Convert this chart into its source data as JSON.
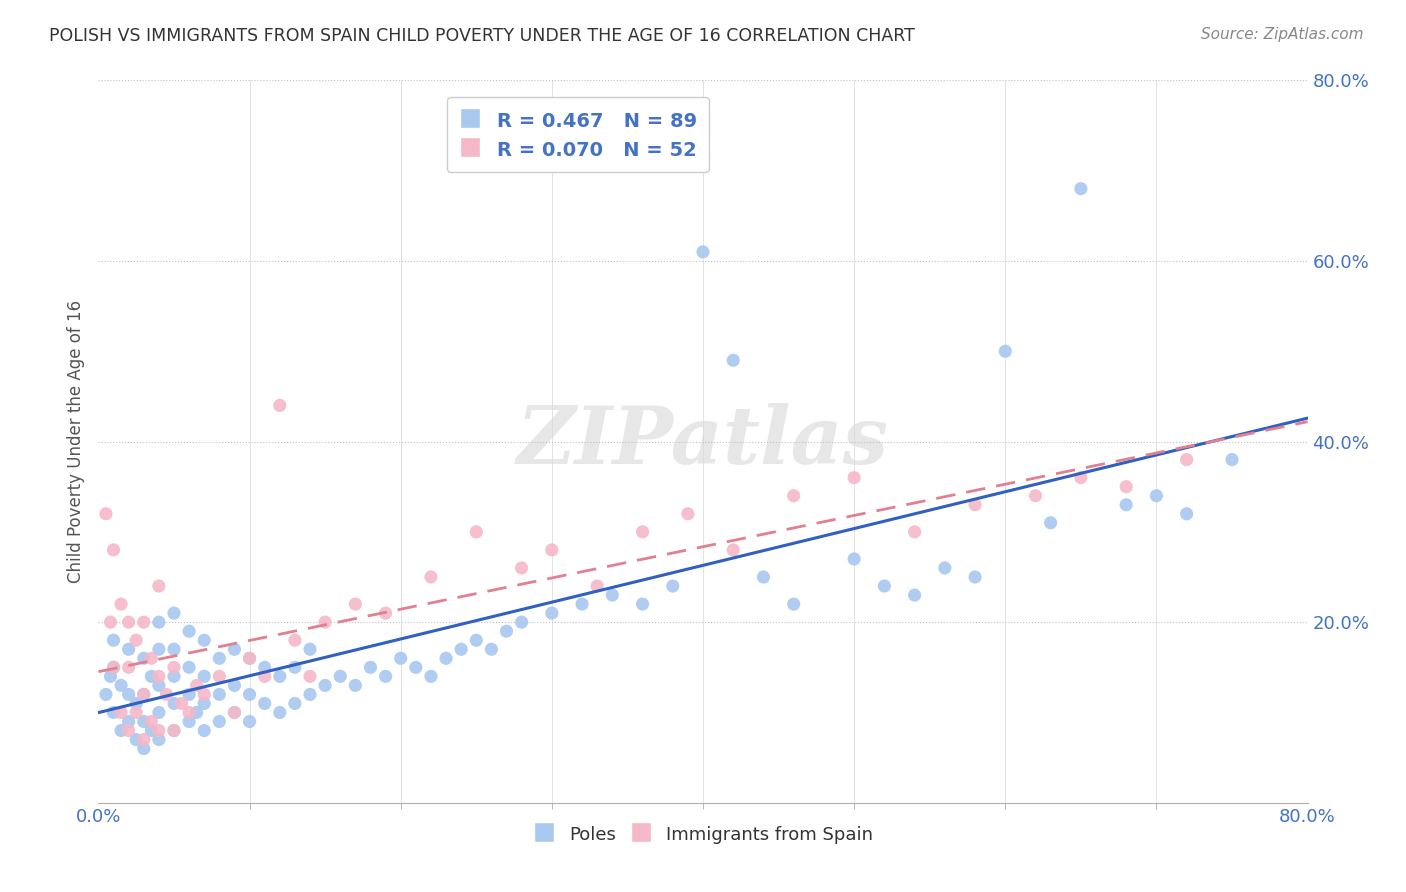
{
  "title": "POLISH VS IMMIGRANTS FROM SPAIN CHILD POVERTY UNDER THE AGE OF 16 CORRELATION CHART",
  "source": "Source: ZipAtlas.com",
  "ylabel": "Child Poverty Under the Age of 16",
  "poles_R": "0.467",
  "poles_N": "89",
  "spain_R": "0.070",
  "spain_N": "52",
  "poles_color": "#a8c8f0",
  "spain_color": "#f4b8c8",
  "poles_line_color": "#3060c0",
  "spain_line_color": "#e08090",
  "watermark_text": "ZIPatlas",
  "xlim": [
    0.0,
    0.8
  ],
  "ylim": [
    0.0,
    0.8
  ],
  "legend_label_poles": "Poles",
  "legend_label_spain": "Immigrants from Spain",
  "xtick_label_left": "0.0%",
  "xtick_label_right": "80.0%",
  "ytick_labels": [
    "20.0%",
    "40.0%",
    "60.0%",
    "80.0%"
  ],
  "ytick_vals": [
    0.2,
    0.4,
    0.6,
    0.8
  ],
  "poles_scatter_x": [
    0.005,
    0.008,
    0.01,
    0.01,
    0.01,
    0.015,
    0.015,
    0.02,
    0.02,
    0.02,
    0.025,
    0.025,
    0.03,
    0.03,
    0.03,
    0.03,
    0.035,
    0.035,
    0.04,
    0.04,
    0.04,
    0.04,
    0.04,
    0.05,
    0.05,
    0.05,
    0.05,
    0.05,
    0.06,
    0.06,
    0.06,
    0.06,
    0.065,
    0.07,
    0.07,
    0.07,
    0.07,
    0.08,
    0.08,
    0.08,
    0.09,
    0.09,
    0.09,
    0.1,
    0.1,
    0.1,
    0.11,
    0.11,
    0.12,
    0.12,
    0.13,
    0.13,
    0.14,
    0.14,
    0.15,
    0.16,
    0.17,
    0.18,
    0.19,
    0.2,
    0.21,
    0.22,
    0.23,
    0.24,
    0.25,
    0.26,
    0.27,
    0.28,
    0.3,
    0.32,
    0.34,
    0.36,
    0.38,
    0.4,
    0.42,
    0.44,
    0.46,
    0.5,
    0.52,
    0.54,
    0.56,
    0.58,
    0.6,
    0.63,
    0.65,
    0.68,
    0.7,
    0.72,
    0.75
  ],
  "poles_scatter_y": [
    0.12,
    0.14,
    0.1,
    0.15,
    0.18,
    0.08,
    0.13,
    0.09,
    0.12,
    0.17,
    0.07,
    0.11,
    0.06,
    0.09,
    0.12,
    0.16,
    0.08,
    0.14,
    0.07,
    0.1,
    0.13,
    0.17,
    0.2,
    0.08,
    0.11,
    0.14,
    0.17,
    0.21,
    0.09,
    0.12,
    0.15,
    0.19,
    0.1,
    0.08,
    0.11,
    0.14,
    0.18,
    0.09,
    0.12,
    0.16,
    0.1,
    0.13,
    0.17,
    0.09,
    0.12,
    0.16,
    0.11,
    0.15,
    0.1,
    0.14,
    0.11,
    0.15,
    0.12,
    0.17,
    0.13,
    0.14,
    0.13,
    0.15,
    0.14,
    0.16,
    0.15,
    0.14,
    0.16,
    0.17,
    0.18,
    0.17,
    0.19,
    0.2,
    0.21,
    0.22,
    0.23,
    0.22,
    0.24,
    0.61,
    0.49,
    0.25,
    0.22,
    0.27,
    0.24,
    0.23,
    0.26,
    0.25,
    0.5,
    0.31,
    0.68,
    0.33,
    0.34,
    0.32,
    0.38
  ],
  "spain_scatter_x": [
    0.005,
    0.008,
    0.01,
    0.01,
    0.015,
    0.015,
    0.02,
    0.02,
    0.02,
    0.025,
    0.025,
    0.03,
    0.03,
    0.03,
    0.035,
    0.035,
    0.04,
    0.04,
    0.04,
    0.045,
    0.05,
    0.05,
    0.055,
    0.06,
    0.065,
    0.07,
    0.08,
    0.09,
    0.1,
    0.11,
    0.12,
    0.13,
    0.14,
    0.15,
    0.17,
    0.19,
    0.22,
    0.25,
    0.28,
    0.3,
    0.33,
    0.36,
    0.39,
    0.42,
    0.46,
    0.5,
    0.54,
    0.58,
    0.62,
    0.65,
    0.68,
    0.72
  ],
  "spain_scatter_y": [
    0.32,
    0.2,
    0.15,
    0.28,
    0.1,
    0.22,
    0.08,
    0.15,
    0.2,
    0.1,
    0.18,
    0.07,
    0.12,
    0.2,
    0.09,
    0.16,
    0.08,
    0.14,
    0.24,
    0.12,
    0.08,
    0.15,
    0.11,
    0.1,
    0.13,
    0.12,
    0.14,
    0.1,
    0.16,
    0.14,
    0.44,
    0.18,
    0.14,
    0.2,
    0.22,
    0.21,
    0.25,
    0.3,
    0.26,
    0.28,
    0.24,
    0.3,
    0.32,
    0.28,
    0.34,
    0.36,
    0.3,
    0.33,
    0.34,
    0.36,
    0.35,
    0.38
  ]
}
